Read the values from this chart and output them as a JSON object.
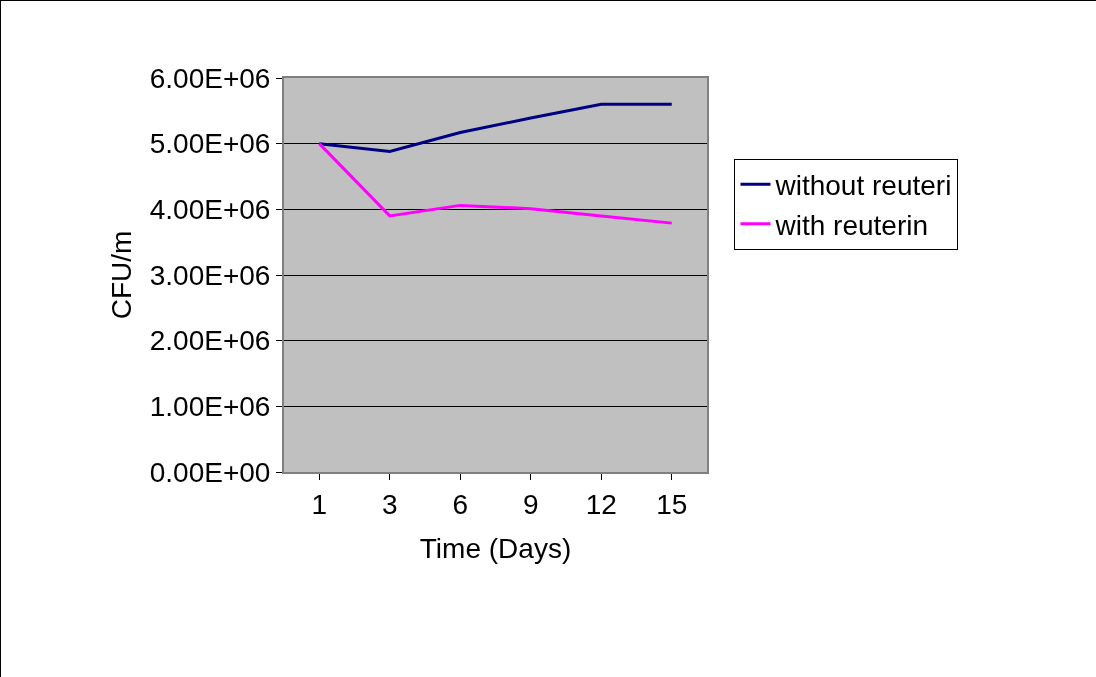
{
  "chart_data": {
    "type": "line",
    "xlabel": "Time (Days)",
    "ylabel": "CFU/m",
    "categories": [
      "1",
      "3",
      "6",
      "9",
      "12",
      "15"
    ],
    "series": [
      {
        "name": "without reuteri",
        "color": "#000080",
        "values": [
          5000000,
          4880000,
          5170000,
          5390000,
          5600000,
          5600000
        ]
      },
      {
        "name": "with reuterin",
        "color": "#ff00ff",
        "values": [
          5000000,
          3900000,
          4060000,
          4010000,
          3900000,
          3790000
        ]
      }
    ],
    "ylim": [
      0,
      6000000
    ],
    "yticks": [
      {
        "value": 0,
        "label": "0.00E+00"
      },
      {
        "value": 1000000,
        "label": "1.00E+06"
      },
      {
        "value": 2000000,
        "label": "2.00E+06"
      },
      {
        "value": 3000000,
        "label": "3.00E+06"
      },
      {
        "value": 4000000,
        "label": "4.00E+06"
      },
      {
        "value": 5000000,
        "label": "5.00E+06"
      },
      {
        "value": 6000000,
        "label": "6.00E+06"
      }
    ],
    "grid": "y",
    "legend": "right",
    "marker": "none",
    "line_style": "solid"
  }
}
